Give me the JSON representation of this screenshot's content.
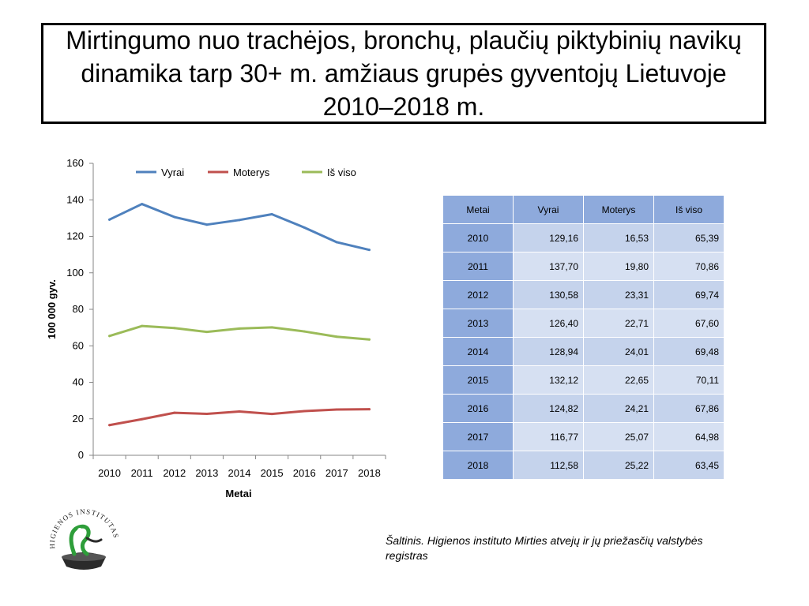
{
  "title": "Mirtingumo nuo trachėjos, bronchų, plaučių piktybinių navikų dinamika tarp 30+ m. amžiaus grupės gyventojų Lietuvoje 2010–2018 m.",
  "chart_data": {
    "type": "line",
    "categories": [
      "2010",
      "2011",
      "2012",
      "2013",
      "2014",
      "2015",
      "2016",
      "2017",
      "2018"
    ],
    "series": [
      {
        "name": "Vyrai",
        "color": "#4f81bd",
        "values": [
          129.16,
          137.7,
          130.58,
          126.4,
          128.94,
          132.12,
          124.82,
          116.77,
          112.58
        ]
      },
      {
        "name": "Moterys",
        "color": "#c0504d",
        "values": [
          16.53,
          19.8,
          23.31,
          22.71,
          24.01,
          22.65,
          24.21,
          25.07,
          25.22
        ]
      },
      {
        "name": "Iš viso",
        "color": "#9bbb59",
        "values": [
          65.39,
          70.86,
          69.74,
          67.6,
          69.48,
          70.11,
          67.86,
          64.98,
          63.45
        ]
      }
    ],
    "ylim": [
      0,
      160
    ],
    "yticks": [
      "0",
      "20",
      "40",
      "60",
      "80",
      "100",
      "120",
      "140",
      "160"
    ],
    "xlabel": "Metai",
    "ylabel": "100 000 gyv.",
    "legend_position": "top",
    "grid": false
  },
  "table": {
    "headers": [
      "Metai",
      "Vyrai",
      "Moterys",
      "Iš viso"
    ],
    "rows": [
      [
        "2010",
        "129,16",
        "16,53",
        "65,39"
      ],
      [
        "2011",
        "137,70",
        "19,80",
        "70,86"
      ],
      [
        "2012",
        "130,58",
        "23,31",
        "69,74"
      ],
      [
        "2013",
        "126,40",
        "22,71",
        "67,60"
      ],
      [
        "2014",
        "128,94",
        "24,01",
        "69,48"
      ],
      [
        "2015",
        "132,12",
        "22,65",
        "70,11"
      ],
      [
        "2016",
        "124,82",
        "24,21",
        "67,86"
      ],
      [
        "2017",
        "116,77",
        "25,07",
        "64,98"
      ],
      [
        "2018",
        "112,58",
        "25,22",
        "63,45"
      ]
    ]
  },
  "source": "Šaltinis. Higienos instituto  Mirties atvejų ir jų priežasčių valstybės registras",
  "logo": {
    "text": "HIGIENOS INSTITUTAS",
    "icon": "higienos-institutas-logo-icon"
  }
}
